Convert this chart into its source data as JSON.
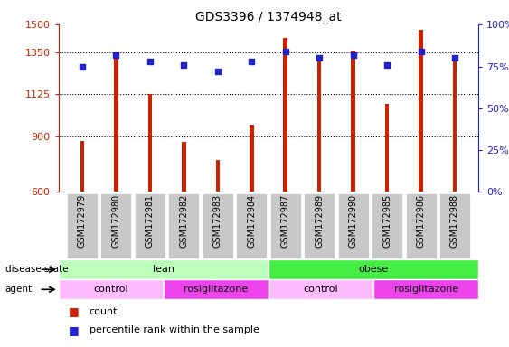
{
  "title": "GDS3396 / 1374948_at",
  "samples": [
    "GSM172979",
    "GSM172980",
    "GSM172981",
    "GSM172982",
    "GSM172983",
    "GSM172984",
    "GSM172987",
    "GSM172989",
    "GSM172990",
    "GSM172985",
    "GSM172986",
    "GSM172988"
  ],
  "counts": [
    875,
    1340,
    1125,
    870,
    770,
    960,
    1430,
    1305,
    1360,
    1075,
    1470,
    1310
  ],
  "percentiles": [
    75,
    82,
    78,
    76,
    72,
    78,
    84,
    80,
    82,
    76,
    84,
    80
  ],
  "ylim_left": [
    600,
    1500
  ],
  "ylim_right": [
    0,
    100
  ],
  "yticks_left": [
    600,
    900,
    1125,
    1350,
    1500
  ],
  "yticks_right": [
    0,
    25,
    50,
    75,
    100
  ],
  "bar_color": "#cc2200",
  "dot_color": "#2222cc",
  "background_color": "#ffffff",
  "tick_bg": "#c8c8c8",
  "disease_state_groups": [
    {
      "label": "lean",
      "start": 0,
      "end": 6,
      "color": "#bbffbb"
    },
    {
      "label": "obese",
      "start": 6,
      "end": 12,
      "color": "#44ee44"
    }
  ],
  "agent_groups": [
    {
      "label": "control",
      "start": 0,
      "end": 3,
      "color": "#ffbbff"
    },
    {
      "label": "rosiglitazone",
      "start": 3,
      "end": 6,
      "color": "#ee44ee"
    },
    {
      "label": "control",
      "start": 6,
      "end": 9,
      "color": "#ffbbff"
    },
    {
      "label": "rosiglitazone",
      "start": 9,
      "end": 12,
      "color": "#ee44ee"
    }
  ],
  "grid_lines": [
    900,
    1125,
    1350
  ],
  "bar_bottom": 600,
  "bar_width": 0.12
}
